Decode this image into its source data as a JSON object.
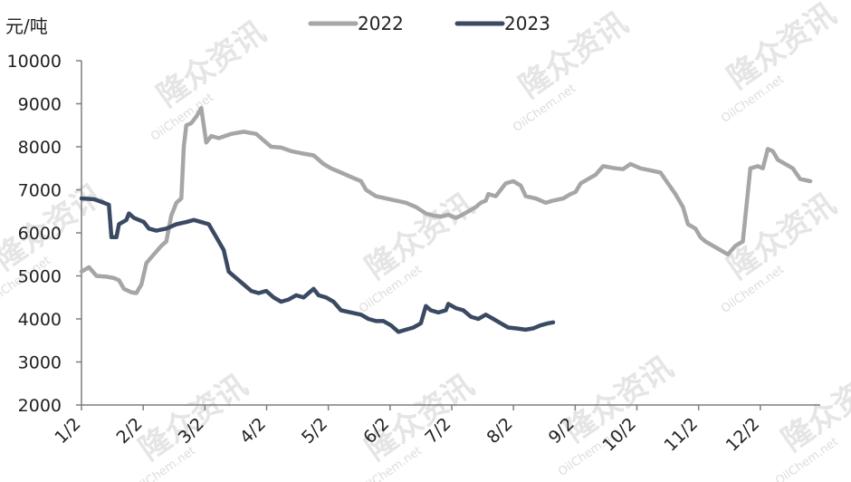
{
  "chart_data": {
    "type": "line",
    "unit_label": "元/吨",
    "ylim": [
      2000,
      10000
    ],
    "y_ticks": [
      "10000",
      "9000",
      "8000",
      "7000",
      "6000",
      "5000",
      "4000",
      "3000",
      "2000"
    ],
    "x_ticks": [
      "1/2",
      "2/2",
      "3/2",
      "4/2",
      "5/2",
      "6/2",
      "7/2",
      "8/2",
      "9/2",
      "10/2",
      "11/2",
      "12/2"
    ],
    "legend_position": "top",
    "grid": false,
    "series": [
      {
        "name": "2022",
        "color": "#a6a6a6",
        "points": [
          [
            0,
            5100
          ],
          [
            3,
            5200
          ],
          [
            6,
            5000
          ],
          [
            10,
            4980
          ],
          [
            13,
            4950
          ],
          [
            15,
            4900
          ],
          [
            17,
            4700
          ],
          [
            20,
            4620
          ],
          [
            22,
            4600
          ],
          [
            24,
            4800
          ],
          [
            26,
            5300
          ],
          [
            29,
            5500
          ],
          [
            32,
            5700
          ],
          [
            34,
            5800
          ],
          [
            36,
            6400
          ],
          [
            38,
            6700
          ],
          [
            40,
            6800
          ],
          [
            41,
            8000
          ],
          [
            42,
            8500
          ],
          [
            44,
            8550
          ],
          [
            46,
            8700
          ],
          [
            47,
            8800
          ],
          [
            48,
            8900
          ],
          [
            50,
            8100
          ],
          [
            52,
            8250
          ],
          [
            55,
            8200
          ],
          [
            60,
            8300
          ],
          [
            65,
            8350
          ],
          [
            70,
            8300
          ],
          [
            73,
            8150
          ],
          [
            76,
            8000
          ],
          [
            80,
            7980
          ],
          [
            84,
            7900
          ],
          [
            88,
            7850
          ],
          [
            93,
            7800
          ],
          [
            97,
            7600
          ],
          [
            100,
            7500
          ],
          [
            104,
            7400
          ],
          [
            108,
            7300
          ],
          [
            112,
            7200
          ],
          [
            114,
            7000
          ],
          [
            118,
            6850
          ],
          [
            122,
            6800
          ],
          [
            126,
            6750
          ],
          [
            130,
            6700
          ],
          [
            134,
            6600
          ],
          [
            138,
            6450
          ],
          [
            141,
            6400
          ],
          [
            144,
            6380
          ],
          [
            147,
            6420
          ],
          [
            150,
            6350
          ],
          [
            152,
            6400
          ],
          [
            155,
            6500
          ],
          [
            158,
            6600
          ],
          [
            160,
            6700
          ],
          [
            162,
            6750
          ],
          [
            163,
            6900
          ],
          [
            166,
            6850
          ],
          [
            168,
            7000
          ],
          [
            170,
            7150
          ],
          [
            173,
            7200
          ],
          [
            176,
            7100
          ],
          [
            178,
            6850
          ],
          [
            182,
            6800
          ],
          [
            186,
            6700
          ],
          [
            189,
            6750
          ],
          [
            193,
            6800
          ],
          [
            196,
            6900
          ],
          [
            198,
            6950
          ],
          [
            200,
            7150
          ],
          [
            203,
            7250
          ],
          [
            206,
            7350
          ],
          [
            209,
            7550
          ],
          [
            214,
            7500
          ],
          [
            217,
            7480
          ],
          [
            220,
            7600
          ],
          [
            224,
            7500
          ],
          [
            228,
            7450
          ],
          [
            232,
            7400
          ],
          [
            235,
            7150
          ],
          [
            238,
            6900
          ],
          [
            241,
            6600
          ],
          [
            243,
            6200
          ],
          [
            246,
            6100
          ],
          [
            248,
            5900
          ],
          [
            250,
            5800
          ],
          [
            253,
            5700
          ],
          [
            256,
            5600
          ],
          [
            259,
            5500
          ],
          [
            262,
            5700
          ],
          [
            265,
            5800
          ],
          [
            268,
            7500
          ],
          [
            271,
            7550
          ],
          [
            273,
            7500
          ],
          [
            275,
            7950
          ],
          [
            277,
            7900
          ],
          [
            279,
            7700
          ],
          [
            282,
            7600
          ],
          [
            285,
            7500
          ],
          [
            288,
            7250
          ],
          [
            292,
            7200
          ]
        ]
      },
      {
        "name": "2023",
        "color": "#3b4a63",
        "points": [
          [
            0,
            6800
          ],
          [
            5,
            6780
          ],
          [
            9,
            6700
          ],
          [
            11,
            6650
          ],
          [
            12,
            5900
          ],
          [
            14,
            5900
          ],
          [
            15,
            6200
          ],
          [
            18,
            6300
          ],
          [
            19,
            6450
          ],
          [
            21,
            6350
          ],
          [
            25,
            6250
          ],
          [
            27,
            6100
          ],
          [
            30,
            6050
          ],
          [
            34,
            6100
          ],
          [
            38,
            6200
          ],
          [
            42,
            6250
          ],
          [
            45,
            6300
          ],
          [
            48,
            6250
          ],
          [
            51,
            6200
          ],
          [
            54,
            5900
          ],
          [
            57,
            5600
          ],
          [
            59,
            5100
          ],
          [
            62,
            4950
          ],
          [
            65,
            4800
          ],
          [
            68,
            4650
          ],
          [
            71,
            4600
          ],
          [
            74,
            4650
          ],
          [
            77,
            4500
          ],
          [
            80,
            4400
          ],
          [
            83,
            4450
          ],
          [
            86,
            4550
          ],
          [
            89,
            4500
          ],
          [
            91,
            4600
          ],
          [
            93,
            4700
          ],
          [
            95,
            4550
          ],
          [
            98,
            4500
          ],
          [
            101,
            4400
          ],
          [
            104,
            4200
          ],
          [
            108,
            4150
          ],
          [
            112,
            4100
          ],
          [
            115,
            4000
          ],
          [
            118,
            3950
          ],
          [
            121,
            3950
          ],
          [
            124,
            3850
          ],
          [
            127,
            3700
          ],
          [
            130,
            3750
          ],
          [
            133,
            3800
          ],
          [
            136,
            3900
          ],
          [
            138,
            4300
          ],
          [
            140,
            4200
          ],
          [
            143,
            4150
          ],
          [
            146,
            4200
          ],
          [
            147,
            4350
          ],
          [
            150,
            4250
          ],
          [
            153,
            4200
          ],
          [
            156,
            4050
          ],
          [
            159,
            4000
          ],
          [
            162,
            4100
          ],
          [
            165,
            4000
          ],
          [
            168,
            3900
          ],
          [
            171,
            3800
          ],
          [
            174,
            3780
          ],
          [
            178,
            3750
          ],
          [
            181,
            3780
          ],
          [
            184,
            3850
          ],
          [
            187,
            3900
          ],
          [
            189,
            3920
          ]
        ]
      }
    ]
  },
  "watermark": {
    "cn": "隆众资讯",
    "en": "OilChem.net"
  }
}
